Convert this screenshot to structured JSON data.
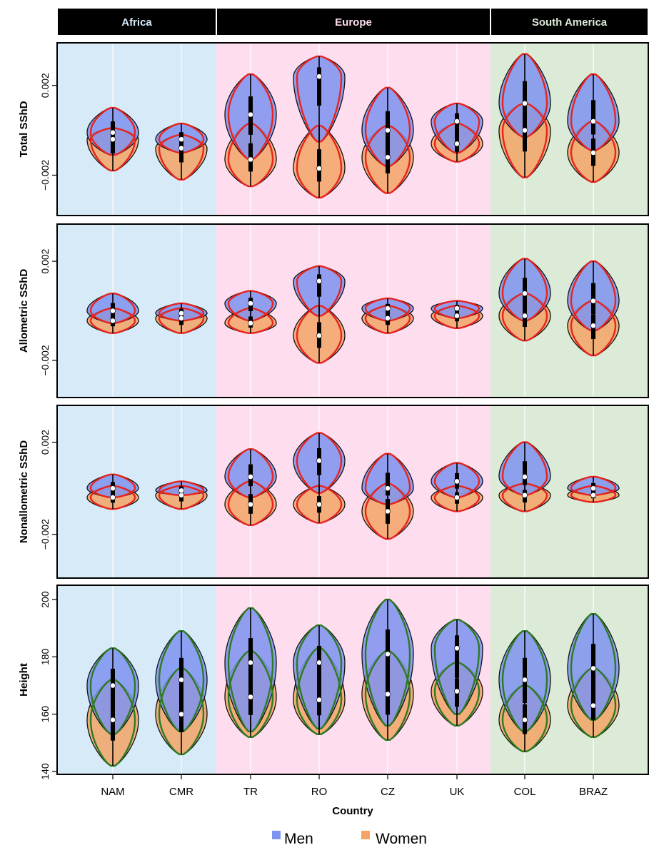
{
  "chart_data": {
    "type": "violin",
    "regions": [
      {
        "label": "Africa",
        "color": "#d6eaf8",
        "countries": [
          "NAM",
          "CMR"
        ]
      },
      {
        "label": "Europe",
        "color": "#fdddee",
        "countries": [
          "TR",
          "RO",
          "CZ",
          "UK"
        ]
      },
      {
        "label": "South America",
        "color": "#dcebd8",
        "countries": [
          "COL",
          "BRAZ"
        ]
      }
    ],
    "categories": [
      "NAM",
      "CMR",
      "TR",
      "RO",
      "CZ",
      "UK",
      "COL",
      "BRAZ"
    ],
    "xlabel": "Country",
    "legend": [
      {
        "label": "Men",
        "color": "#7e93f0"
      },
      {
        "label": "Women",
        "color": "#f3a466"
      }
    ],
    "colors": {
      "men_fill": "#7e93f0",
      "women_fill": "#f3a466",
      "sshd_outline": "#e8231e",
      "height_outline": "#2d7a22"
    },
    "panels": [
      {
        "ylabel": "Total SShD",
        "ylim": [
          -0.0038,
          0.0039
        ],
        "yticks": [
          {
            "v": -0.002,
            "label": "−0.002"
          },
          {
            "v": 0.002,
            "label": "0.002"
          }
        ],
        "outline": "red",
        "men": [
          {
            "min": -0.0011,
            "max": 0.001,
            "median": -0.0001
          },
          {
            "min": -0.001,
            "max": 0.0003,
            "median": -0.0004
          },
          {
            "min": -0.0013,
            "max": 0.0025,
            "median": 0.0007
          },
          {
            "min": -0.0005,
            "max": 0.0033,
            "median": 0.0024
          },
          {
            "min": -0.0016,
            "max": 0.0019,
            "median": 0.0
          },
          {
            "min": -0.001,
            "max": 0.0012,
            "median": 0.0004
          },
          {
            "min": -0.0003,
            "max": 0.0034,
            "median": 0.0012
          },
          {
            "min": -0.0009,
            "max": 0.0025,
            "median": 0.0004
          }
        ],
        "women": [
          {
            "min": -0.0018,
            "max": 0.0001,
            "median": -0.0004
          },
          {
            "min": -0.0022,
            "max": -0.0002,
            "median": -0.0008
          },
          {
            "min": -0.0025,
            "max": 0.0003,
            "median": -0.0013
          },
          {
            "min": -0.003,
            "max": 0.0002,
            "median": -0.0017
          },
          {
            "min": -0.0028,
            "max": 0.0002,
            "median": -0.0012
          },
          {
            "min": -0.0014,
            "max": 0.0003,
            "median": -0.0006
          },
          {
            "min": -0.0021,
            "max": 0.0012,
            "median": 0.0
          },
          {
            "min": -0.0023,
            "max": 0.0004,
            "median": -0.001
          }
        ]
      },
      {
        "ylabel": "Allometric SShD",
        "ylim": [
          -0.0035,
          0.0035
        ],
        "yticks": [
          {
            "v": -0.002,
            "label": "−0.002"
          },
          {
            "v": 0.002,
            "label": "0.002"
          }
        ],
        "outline": "red",
        "men": [
          {
            "min": -0.0005,
            "max": 0.0007,
            "median": 0.0
          },
          {
            "min": -0.0004,
            "max": 0.0003,
            "median": -0.0001
          },
          {
            "min": -0.0004,
            "max": 0.0008,
            "median": 0.0003
          },
          {
            "min": -0.0002,
            "max": 0.0018,
            "median": 0.0012
          },
          {
            "min": -0.0004,
            "max": 0.0005,
            "median": 0.0001
          },
          {
            "min": -0.0003,
            "max": 0.0004,
            "median": 0.0001
          },
          {
            "min": -0.0004,
            "max": 0.0021,
            "median": 0.0007
          },
          {
            "min": -0.0008,
            "max": 0.002,
            "median": 0.0004
          }
        ],
        "women": [
          {
            "min": -0.0009,
            "max": 0.0001,
            "median": -0.0004
          },
          {
            "min": -0.0009,
            "max": 0.0001,
            "median": -0.0003
          },
          {
            "min": -0.0009,
            "max": 0.0001,
            "median": -0.0005
          },
          {
            "min": -0.0021,
            "max": 0.0002,
            "median": -0.001
          },
          {
            "min": -0.0009,
            "max": 0.0002,
            "median": -0.0003
          },
          {
            "min": -0.0007,
            "max": 0.0002,
            "median": -0.0002
          },
          {
            "min": -0.0012,
            "max": 0.0007,
            "median": -0.0002
          },
          {
            "min": -0.0018,
            "max": 0.0004,
            "median": -0.0006
          }
        ]
      },
      {
        "ylabel": "Nonallometric SShD",
        "ylim": [
          -0.0039,
          0.0036
        ],
        "yticks": [
          {
            "v": -0.002,
            "label": "−0.002"
          },
          {
            "v": 0.002,
            "label": "0.002"
          }
        ],
        "outline": "red",
        "men": [
          {
            "min": -0.0004,
            "max": 0.0006,
            "median": 0.0
          },
          {
            "min": -0.0003,
            "max": 0.0003,
            "median": -0.0001
          },
          {
            "min": -0.0004,
            "max": 0.0017,
            "median": 0.0005
          },
          {
            "min": -0.0002,
            "max": 0.0024,
            "median": 0.0012
          },
          {
            "min": -0.0007,
            "max": 0.0015,
            "median": 0.0
          },
          {
            "min": -0.0004,
            "max": 0.0011,
            "median": 0.0003
          },
          {
            "min": -0.0003,
            "max": 0.002,
            "median": 0.0005
          },
          {
            "min": -0.0003,
            "max": 0.0005,
            "median": 0.0
          }
        ],
        "women": [
          {
            "min": -0.0009,
            "max": 0.0001,
            "median": -0.0004
          },
          {
            "min": -0.0009,
            "max": 0.0001,
            "median": -0.0003
          },
          {
            "min": -0.0016,
            "max": 0.0003,
            "median": -0.0007
          },
          {
            "min": -0.0015,
            "max": 0.0001,
            "median": -0.0007
          },
          {
            "min": -0.0022,
            "max": 0.0002,
            "median": -0.001
          },
          {
            "min": -0.001,
            "max": 0.0001,
            "median": -0.0004
          },
          {
            "min": -0.001,
            "max": 0.0002,
            "median": -0.0003
          },
          {
            "min": -0.0006,
            "max": 0.0001,
            "median": -0.0003
          }
        ]
      },
      {
        "ylabel": "Height",
        "ylim": [
          139,
          205
        ],
        "yticks": [
          {
            "v": 140,
            "label": "140"
          },
          {
            "v": 160,
            "label": "160"
          },
          {
            "v": 180,
            "label": "180"
          },
          {
            "v": 200,
            "label": "200"
          }
        ],
        "outline": "green",
        "men": [
          {
            "min": 153,
            "max": 183,
            "median": 170
          },
          {
            "min": 154,
            "max": 189,
            "median": 172
          },
          {
            "min": 154,
            "max": 197,
            "median": 178
          },
          {
            "min": 155,
            "max": 191,
            "median": 178
          },
          {
            "min": 156,
            "max": 200,
            "median": 181
          },
          {
            "min": 160,
            "max": 193,
            "median": 183
          },
          {
            "min": 154,
            "max": 189,
            "median": 172
          },
          {
            "min": 158,
            "max": 195,
            "median": 176
          }
        ],
        "women": [
          {
            "min": 142,
            "max": 172,
            "median": 158
          },
          {
            "min": 146,
            "max": 176,
            "median": 160
          },
          {
            "min": 152,
            "max": 182,
            "median": 166
          },
          {
            "min": 153,
            "max": 183,
            "median": 165
          },
          {
            "min": 151,
            "max": 182,
            "median": 167
          },
          {
            "min": 156,
            "max": 178,
            "median": 168
          },
          {
            "min": 147,
            "max": 170,
            "median": 158
          },
          {
            "min": 152,
            "max": 176,
            "median": 163
          }
        ]
      }
    ]
  }
}
